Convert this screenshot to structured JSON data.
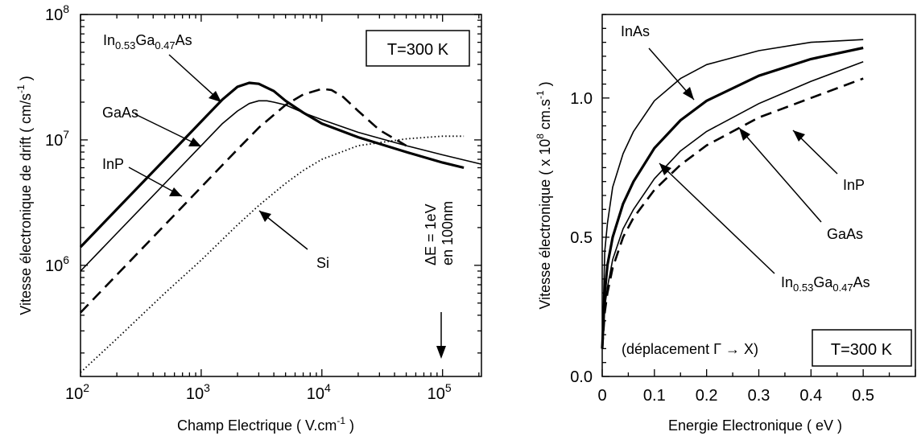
{
  "chart_data": [
    {
      "type": "line",
      "xscale": "log",
      "yscale": "log",
      "xlim": [
        100,
        210000
      ],
      "ylim": [
        130000,
        100000000
      ],
      "xlabel": "Champ Electrique ( V.cm",
      "xlabel_sup": "-1",
      "xlabel_end": " )",
      "ylabel": "Vitesse électronique de drift  ( cm/s",
      "ylabel_sup": "-1",
      "ylabel_end": " )",
      "x_ticks": [
        {
          "value": 100,
          "base": "10",
          "exp": "2"
        },
        {
          "value": 1000,
          "base": "10",
          "exp": "3"
        },
        {
          "value": 10000,
          "base": "10",
          "exp": "4"
        },
        {
          "value": 100000,
          "base": "10",
          "exp": "5"
        }
      ],
      "y_ticks": [
        {
          "value": 1000000,
          "base": "10",
          "exp": "6"
        },
        {
          "value": 10000000,
          "base": "10",
          "exp": "7"
        },
        {
          "value": 100000000,
          "base": "10",
          "exp": "8"
        }
      ],
      "grid": false,
      "annotations": {
        "temp_box": "T=300 K",
        "delta_line1": "ΔE = 1eV",
        "delta_line2": "en 100nm",
        "labels": {
          "ingaas_main": "In",
          "ingaas_sub1": "0.53",
          "ingaas_mid": "Ga",
          "ingaas_sub2": "0.47",
          "ingaas_end": "As",
          "gaas": "GaAs",
          "inp": "InP",
          "si": "Si"
        }
      },
      "series": [
        {
          "id": "ingaas",
          "style": "thick-solid",
          "x": [
            100,
            200,
            500,
            1000,
            1500,
            2000,
            2500,
            3000,
            4000,
            5000,
            7000,
            10000,
            20000,
            50000,
            100000,
            150000
          ],
          "y": [
            1400000,
            2800000,
            7000000,
            14000000,
            21000000,
            26500000,
            28500000,
            28000000,
            24500000,
            20500000,
            16500000,
            13500000,
            10500000,
            8000000,
            6600000,
            6000000
          ]
        },
        {
          "id": "gaas",
          "style": "solid",
          "x": [
            100,
            200,
            500,
            1000,
            1500,
            2000,
            2500,
            3000,
            3500,
            4000,
            5000,
            7000,
            10000,
            20000,
            50000,
            100000,
            210000
          ],
          "y": [
            900000,
            1800000,
            4500000,
            9000000,
            13500000,
            17000000,
            19500000,
            20500000,
            20500000,
            20000000,
            19000000,
            16500000,
            14500000,
            11500000,
            9000000,
            7600000,
            6400000
          ]
        },
        {
          "id": "inp",
          "style": "dashed",
          "x": [
            100,
            200,
            500,
            1000,
            2000,
            3000,
            5000,
            7000,
            10000,
            12000,
            15000,
            20000,
            30000,
            50000
          ],
          "y": [
            420000,
            840000,
            2100000,
            4200000,
            8400000,
            12500000,
            19000000,
            23000000,
            25500000,
            25000000,
            22000000,
            17000000,
            12000000,
            9000000
          ]
        },
        {
          "id": "si",
          "style": "dotted",
          "x": [
            100,
            200,
            500,
            1000,
            2000,
            3000,
            5000,
            7000,
            10000,
            20000,
            50000,
            100000,
            150000
          ],
          "y": [
            140000,
            260000,
            600000,
            1100000,
            2100000,
            3000000,
            4500000,
            5700000,
            7000000,
            9000000,
            10200000,
            10700000,
            10700000
          ]
        }
      ]
    },
    {
      "type": "line",
      "xlim": [
        0,
        0.6
      ],
      "ylim": [
        0,
        1.3
      ],
      "xlabel": "Energie Electronique ( eV )",
      "ylabel": "Vitesse électronique  ( x 10",
      "ylabel_sup": "8",
      "ylabel_mid": "  cm.s",
      "ylabel_sup2": "-1",
      "ylabel_end": " )",
      "x_ticks": [
        "0",
        "0.1",
        "0.2",
        "0.3",
        "0.4",
        "0.5"
      ],
      "x_tick_values": [
        0,
        0.1,
        0.2,
        0.3,
        0.4,
        0.5
      ],
      "y_ticks": [
        "0.0",
        "0.5",
        "1.0"
      ],
      "y_tick_values": [
        0,
        0.5,
        1.0
      ],
      "grid": false,
      "annotations": {
        "temp_box": "T=300 K",
        "displacement": "(déplacement Γ → X)",
        "labels": {
          "inas": "InAs",
          "inp": "InP",
          "gaas": "GaAs",
          "ingaas_main": "In",
          "ingaas_sub1": "0.53",
          "ingaas_mid": "Ga",
          "ingaas_sub2": "0.47",
          "ingaas_end": "As"
        }
      },
      "series": [
        {
          "id": "inas",
          "style": "solid",
          "x": [
            0,
            0.005,
            0.01,
            0.02,
            0.04,
            0.06,
            0.1,
            0.15,
            0.2,
            0.3,
            0.4,
            0.5
          ],
          "y": [
            0.1,
            0.45,
            0.55,
            0.68,
            0.8,
            0.88,
            0.99,
            1.07,
            1.12,
            1.17,
            1.2,
            1.21
          ]
        },
        {
          "id": "ingaas",
          "style": "thick-solid",
          "x": [
            0,
            0.005,
            0.01,
            0.02,
            0.04,
            0.06,
            0.1,
            0.15,
            0.2,
            0.3,
            0.4,
            0.5
          ],
          "y": [
            0.1,
            0.3,
            0.4,
            0.5,
            0.62,
            0.7,
            0.82,
            0.92,
            0.99,
            1.08,
            1.14,
            1.18
          ]
        },
        {
          "id": "gaas",
          "style": "solid",
          "x": [
            0,
            0.005,
            0.01,
            0.02,
            0.04,
            0.06,
            0.1,
            0.15,
            0.2,
            0.3,
            0.4,
            0.5
          ],
          "y": [
            0.1,
            0.25,
            0.32,
            0.42,
            0.53,
            0.6,
            0.71,
            0.81,
            0.88,
            0.98,
            1.06,
            1.13
          ]
        },
        {
          "id": "inp",
          "style": "dashed",
          "x": [
            0,
            0.005,
            0.01,
            0.02,
            0.04,
            0.06,
            0.1,
            0.15,
            0.2,
            0.3,
            0.4,
            0.5
          ],
          "y": [
            0.1,
            0.23,
            0.3,
            0.39,
            0.5,
            0.57,
            0.67,
            0.76,
            0.83,
            0.93,
            1.0,
            1.07
          ]
        }
      ]
    }
  ]
}
